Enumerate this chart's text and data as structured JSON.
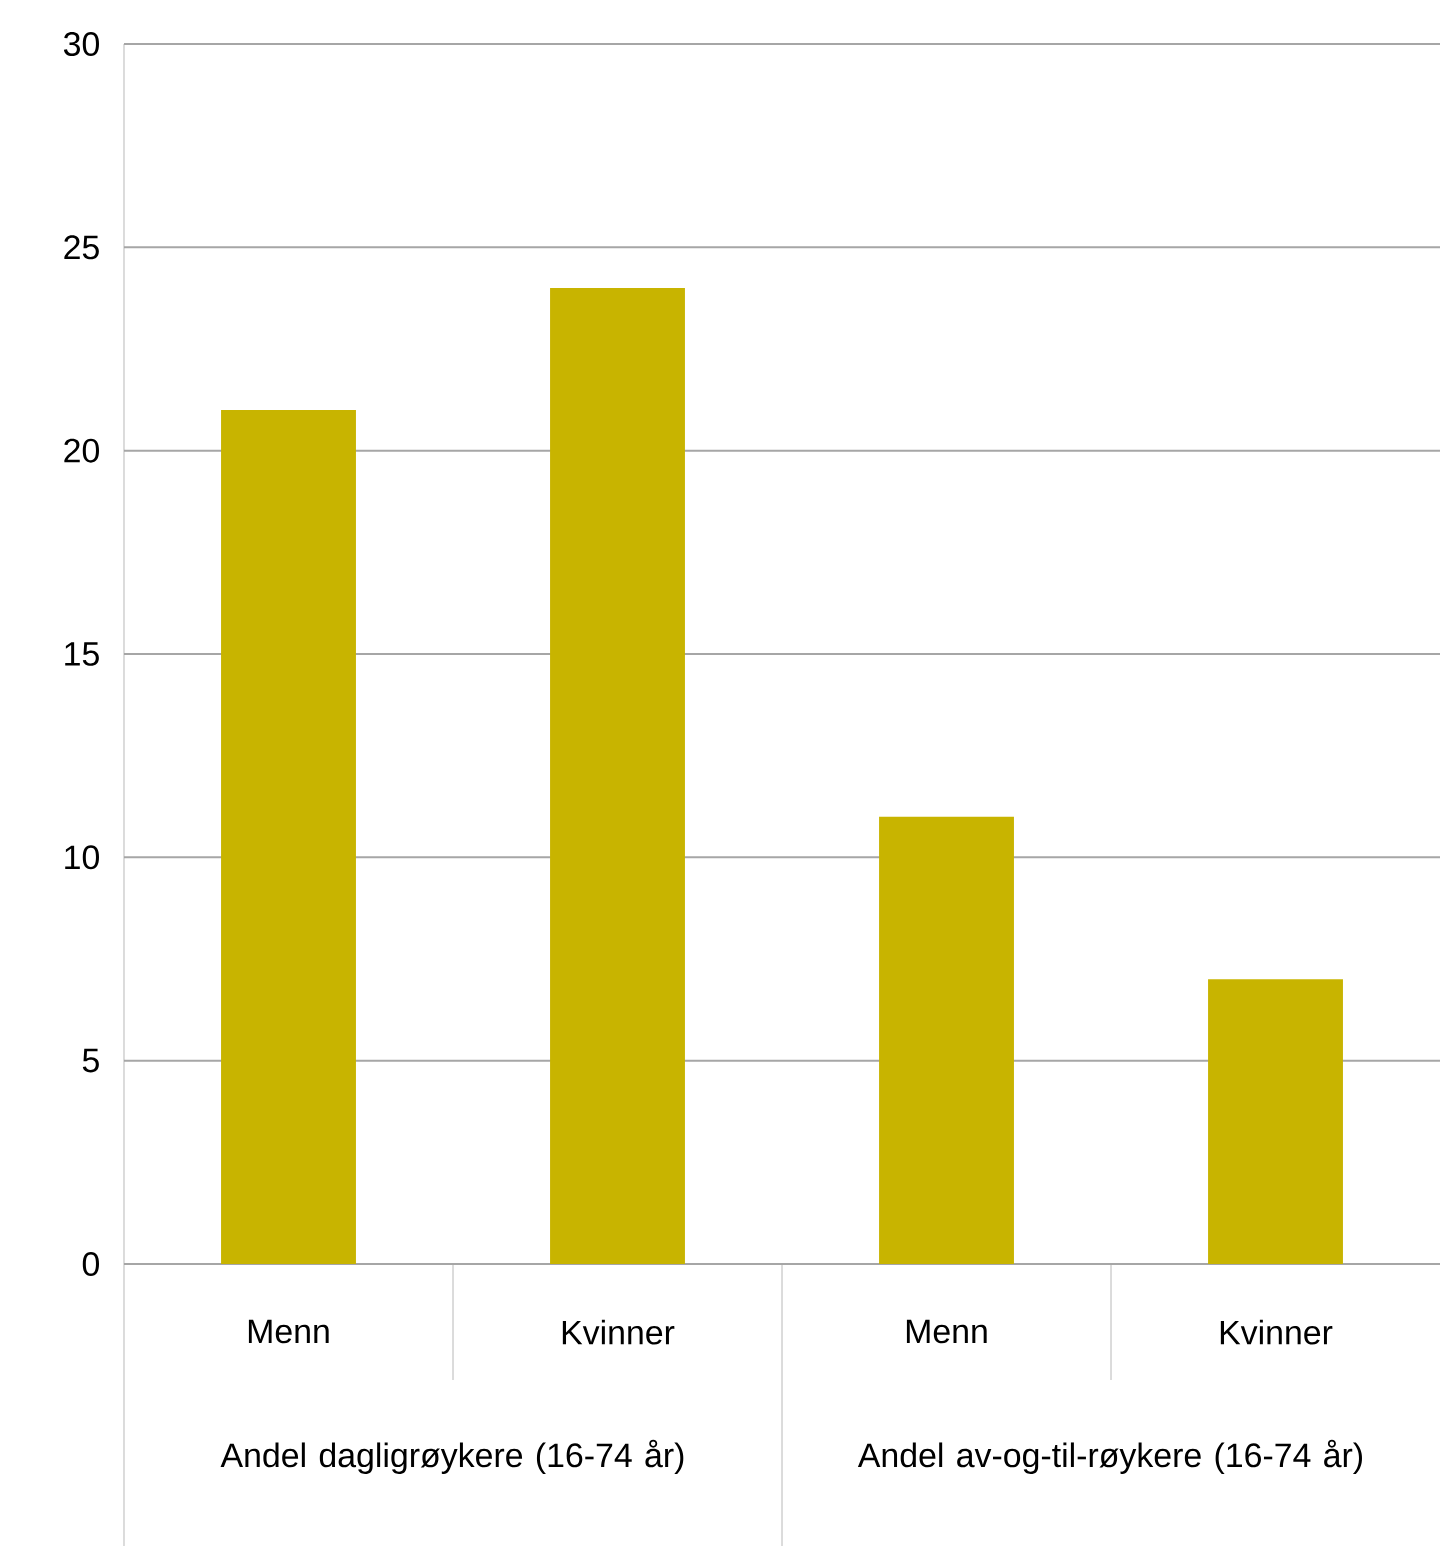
{
  "chart_data": {
    "type": "bar",
    "categories": [
      "Menn",
      "Kvinner",
      "Menn",
      "Kvinner"
    ],
    "values": [
      21,
      24,
      11,
      7
    ],
    "color": "#c8b400",
    "ylim": [
      0,
      30
    ],
    "yticks": [
      0,
      5,
      10,
      15,
      20,
      25,
      30
    ],
    "grid": "y",
    "annotations": [
      "Andel dagligrøykere (16-74 år)",
      "Andel av-og-til-røykere (16-74 år)"
    ]
  }
}
